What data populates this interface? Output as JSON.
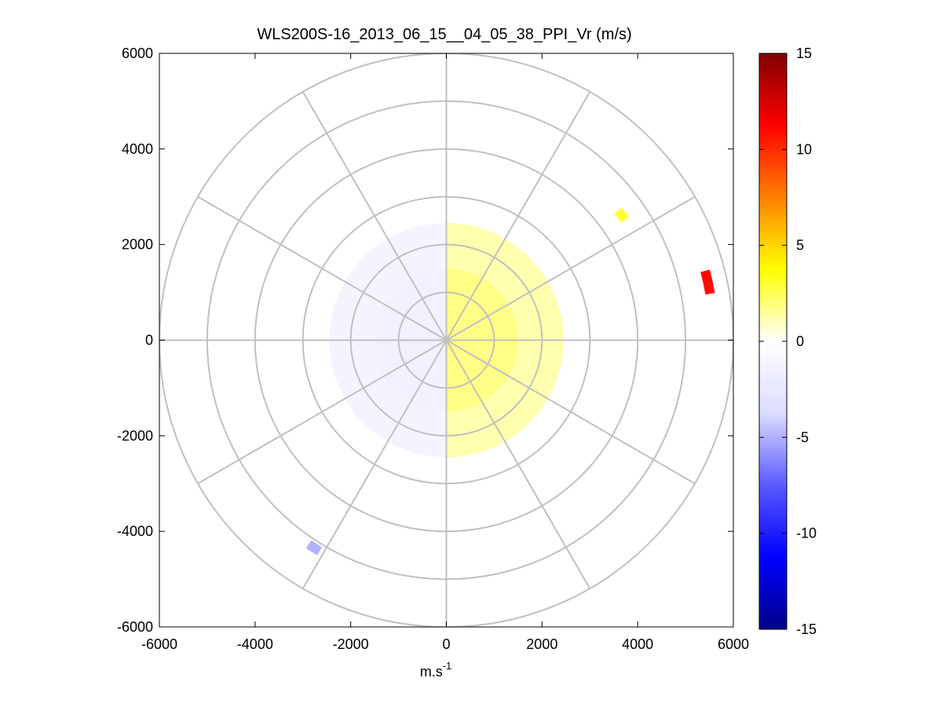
{
  "chart_data": {
    "type": "heatmap",
    "subtype": "polar-ppi",
    "title": "WLS200S-16_2013_06_15__04_05_38_PPI_Vr (m/s)",
    "xlabel": "m.s",
    "xlabel_sup": "-1",
    "ylabel": "",
    "xlim": [
      -6000,
      6000
    ],
    "ylim": [
      -6000,
      6000
    ],
    "xticks": [
      "-6000",
      "-4000",
      "-2000",
      "0",
      "2000",
      "4000",
      "6000"
    ],
    "yticks": [
      "6000",
      "4000",
      "2000",
      "0",
      "-2000",
      "-4000",
      "-6000"
    ],
    "polar_grid": {
      "ring_radii": [
        1000,
        2000,
        3000,
        4000,
        5000,
        6000
      ],
      "spoke_angles_deg": [
        0,
        30,
        60,
        90,
        120,
        150,
        180,
        210,
        240,
        270,
        300,
        330
      ],
      "grid": "on",
      "grid_color": "#c0c0c0"
    },
    "colorbar": {
      "position": "right",
      "range": [
        -15,
        15
      ],
      "ticks": [
        "15",
        "10",
        "5",
        "0",
        "-5",
        "-10",
        "-15"
      ],
      "colormap": "blue-white-yellow-red",
      "colors": [
        "#00008b",
        "#0000ff",
        "#5a5aff",
        "#dcdcff",
        "#ffffff",
        "#ffff00",
        "#ff8000",
        "#ff0000",
        "#800000"
      ]
    },
    "data_regions": [
      {
        "name": "inner negative sector",
        "r_range": [
          0,
          1500
        ],
        "az_range_deg": [
          180,
          360
        ],
        "vr": -1.5
      },
      {
        "name": "inner positive sector",
        "r_range": [
          0,
          1500
        ],
        "az_range_deg": [
          0,
          180
        ],
        "vr": 1.8
      },
      {
        "name": "outer negative annulus",
        "r_range": [
          1500,
          2450
        ],
        "az_range_deg": [
          175,
          360
        ],
        "vr": -1.2
      },
      {
        "name": "outer positive annulus",
        "r_range": [
          1500,
          2450
        ],
        "az_range_deg": [
          0,
          180
        ],
        "vr": 1.2
      },
      {
        "name": "strong positive patch",
        "r_range": [
          5500,
          5700
        ],
        "az_range_deg": [
          75,
          80
        ],
        "vr": 11
      },
      {
        "name": "positive patch NE",
        "r_range": [
          4400,
          4600
        ],
        "az_range_deg": [
          53,
          56
        ],
        "vr": 3
      },
      {
        "name": "negative patch SW",
        "r_range": [
          5050,
          5250
        ],
        "az_range_deg": [
          211,
          214
        ],
        "vr": -5
      }
    ]
  }
}
